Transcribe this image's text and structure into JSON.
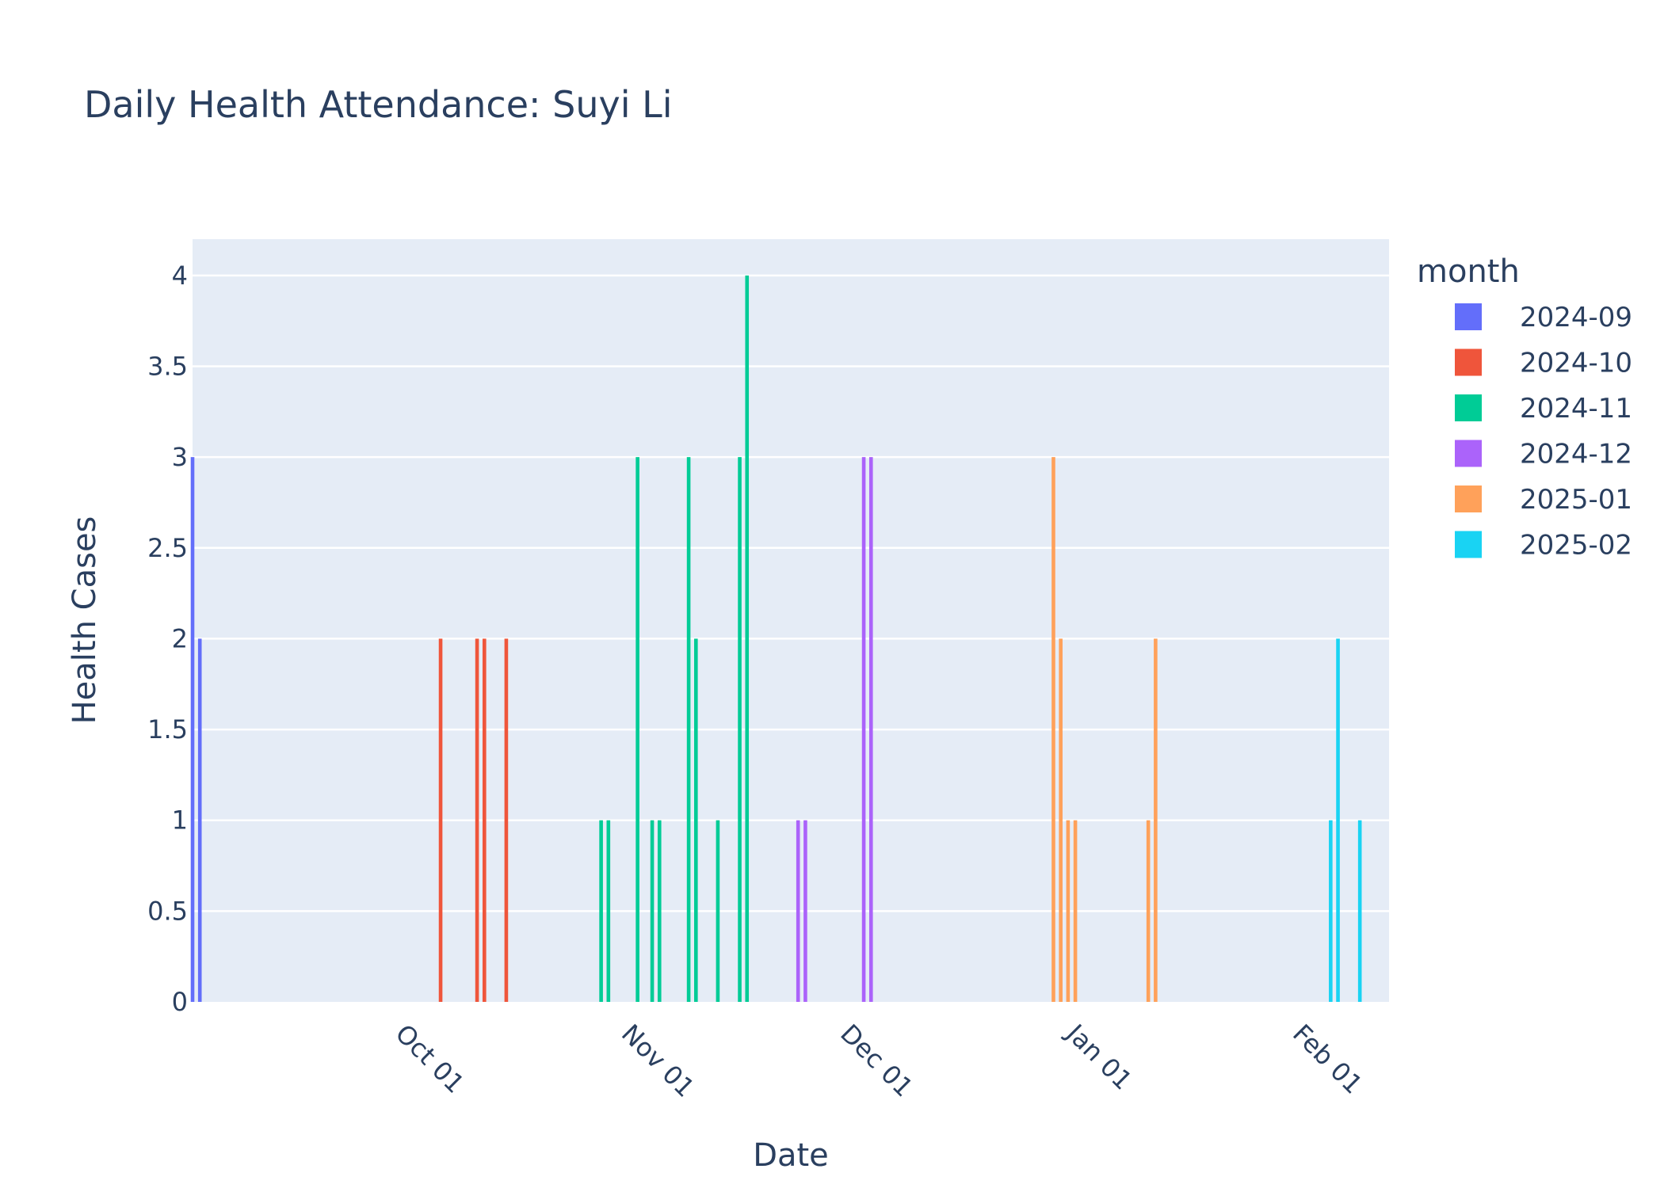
{
  "chart_data": {
    "type": "bar",
    "title": "Daily Health Attendance: Suyi Li",
    "xlabel": "Date",
    "ylabel": "Health Cases",
    "xlim": [
      "2024-09-01",
      "2025-02-12"
    ],
    "ylim": [
      0,
      4.2
    ],
    "y_ticks": [
      0,
      0.5,
      1,
      1.5,
      2,
      2.5,
      3,
      3.5,
      4
    ],
    "x_ticks": [
      {
        "date": "2024-10-01",
        "label": "Oct 01"
      },
      {
        "date": "2024-11-01",
        "label": "Nov 01"
      },
      {
        "date": "2024-12-01",
        "label": "Dec 01"
      },
      {
        "date": "2025-01-01",
        "label": "Jan 01"
      },
      {
        "date": "2025-02-01",
        "label": "Feb 01"
      }
    ],
    "grid": true,
    "background": "#e5ecf6",
    "legend_title": "month",
    "legend_position": "right",
    "series": [
      {
        "name": "2024-09",
        "color": "#636efa",
        "x": [
          "2024-09-01",
          "2024-09-02"
        ],
        "values": [
          3,
          2
        ]
      },
      {
        "name": "2024-10",
        "color": "#ef553b",
        "x": [
          "2024-10-05",
          "2024-10-10",
          "2024-10-11",
          "2024-10-14"
        ],
        "values": [
          2,
          2,
          2,
          2
        ]
      },
      {
        "name": "2024-11",
        "color": "#00cc96",
        "x": [
          "2024-10-27",
          "2024-10-28",
          "2024-11-01",
          "2024-11-03",
          "2024-11-04",
          "2024-11-08",
          "2024-11-09",
          "2024-11-12",
          "2024-11-15",
          "2024-11-16"
        ],
        "values": [
          1,
          1,
          3,
          1,
          1,
          3,
          2,
          1,
          3,
          4
        ]
      },
      {
        "name": "2024-12",
        "color": "#ab63fa",
        "x": [
          "2024-11-23",
          "2024-11-24",
          "2024-12-02",
          "2024-12-03"
        ],
        "values": [
          1,
          1,
          3,
          3
        ]
      },
      {
        "name": "2025-01",
        "color": "#ffa15a",
        "x": [
          "2024-12-28",
          "2024-12-29",
          "2024-12-30",
          "2024-12-31",
          "2025-01-10",
          "2025-01-11"
        ],
        "values": [
          3,
          2,
          1,
          1,
          1,
          2
        ]
      },
      {
        "name": "2025-02",
        "color": "#19d3f3",
        "x": [
          "2025-02-04",
          "2025-02-05",
          "2025-02-08"
        ],
        "values": [
          1,
          2,
          1
        ]
      }
    ]
  }
}
